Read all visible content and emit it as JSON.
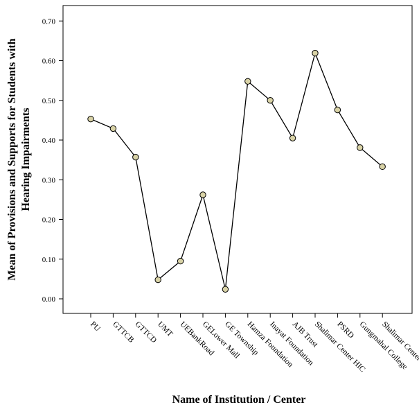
{
  "chart_data": {
    "type": "line",
    "title": "",
    "xlabel": "Name of Institution / Center",
    "ylabel_lines": [
      "Mean of Provisions and Supports for Students with",
      "Hearing Impairments"
    ],
    "ylim": [
      -0.03,
      0.74
    ],
    "yticks": [
      0.0,
      0.1,
      0.2,
      0.3,
      0.4,
      0.5,
      0.6,
      0.7
    ],
    "ytick_labels": [
      "0.00",
      "0.10",
      "0.20",
      "0.30",
      "0.40",
      "0.50",
      "0.60",
      "0.70"
    ],
    "categories": [
      "PU",
      "GTTCB",
      "GTTCD",
      "UMT",
      "UEBankRoad",
      "GELower Mall",
      "GE Township",
      "Hamza Foundation",
      "Inayat Foundation",
      "AJB Trust",
      "Shalimar Center HIC",
      "PSRD",
      "Gungmahal College",
      "Shalimar Center"
    ],
    "series": [
      {
        "values": [
          0.453,
          0.429,
          0.357,
          0.048,
          0.095,
          0.262,
          0.024,
          0.548,
          0.5,
          0.405,
          0.619,
          0.476,
          0.381,
          0.333
        ]
      }
    ],
    "grid": false,
    "marker_color": "#d8d2a6",
    "line_color": "#000000"
  }
}
